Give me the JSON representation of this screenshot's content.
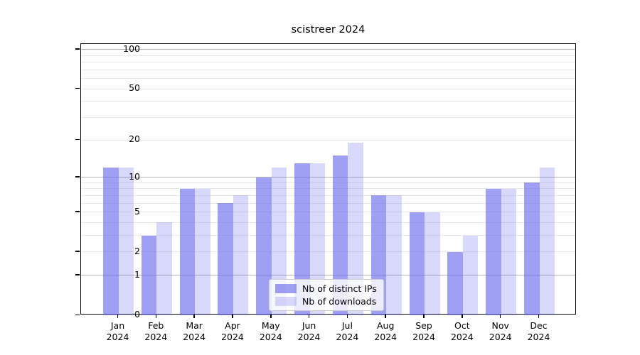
{
  "chart_data": {
    "type": "bar",
    "title": "scistreer 2024",
    "xlabel": "",
    "ylabel": "",
    "categories": [
      "Jan",
      "Feb",
      "Mar",
      "Apr",
      "May",
      "Jun",
      "Jul",
      "Aug",
      "Sep",
      "Oct",
      "Nov",
      "Dec"
    ],
    "year_label": "2024",
    "series": [
      {
        "name": "Nb of distinct IPs",
        "color": "rgba(100,100,235,0.62)",
        "values": [
          12,
          3,
          8,
          6,
          10,
          13,
          15,
          7,
          5,
          2,
          8,
          9
        ]
      },
      {
        "name": "Nb of downloads",
        "color": "rgba(100,100,235,0.25)",
        "values": [
          12,
          4,
          8,
          7,
          12,
          13,
          19,
          7,
          5,
          3,
          8,
          12
        ]
      }
    ],
    "y_scale": "log1p",
    "ylim": [
      0,
      110
    ],
    "y_ticks": [
      100,
      50,
      20,
      10,
      5,
      2,
      1,
      0
    ],
    "y_minor_ticks": [
      3,
      4,
      6,
      7,
      8,
      9,
      30,
      40,
      60,
      70,
      80,
      90
    ],
    "y_major_gridlines": [
      1,
      10,
      100
    ],
    "grid": "horizontal",
    "legend_position": "bottom-center",
    "colors": {
      "major_grid": "#b3b3b3",
      "minor_grid": "#e8e8e8",
      "spine": "#000000",
      "bar_base": "#6464eb"
    }
  }
}
